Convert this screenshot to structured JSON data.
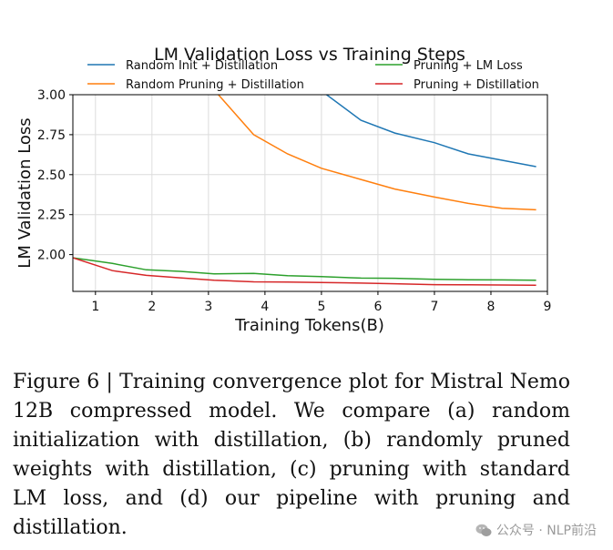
{
  "chart_data": {
    "type": "line",
    "title": "LM Validation Loss vs Training Steps",
    "xlabel": "Training Tokens(B)",
    "ylabel": "LM Validation Loss",
    "xlim": [
      0.6,
      9.0
    ],
    "ylim": [
      1.77,
      3.0
    ],
    "xticks": [
      1,
      2,
      3,
      4,
      5,
      6,
      7,
      8,
      9
    ],
    "yticks": [
      2.0,
      2.25,
      2.5,
      2.75,
      3.0
    ],
    "ytick_labels": [
      "2.00",
      "2.25",
      "2.50",
      "2.75",
      "3.00"
    ],
    "grid": true,
    "legend_position": "top",
    "series": [
      {
        "name": "Random Init + Distillation",
        "color": "#1f77b4",
        "x": [
          4.9,
          5.7,
          6.3,
          7.0,
          7.6,
          8.2,
          8.8
        ],
        "y": [
          3.05,
          2.84,
          2.76,
          2.7,
          2.63,
          2.59,
          2.55
        ]
      },
      {
        "name": "Random Pruning + Distillation",
        "color": "#ff7f0e",
        "x": [
          3.05,
          3.8,
          4.4,
          5.0,
          5.7,
          6.3,
          7.0,
          7.6,
          8.2,
          8.8
        ],
        "y": [
          3.05,
          2.75,
          2.63,
          2.54,
          2.47,
          2.41,
          2.36,
          2.32,
          2.29,
          2.28
        ]
      },
      {
        "name": "Pruning + LM Loss",
        "color": "#2ca02c",
        "x": [
          0.6,
          1.3,
          1.9,
          2.5,
          3.1,
          3.8,
          4.4,
          5.0,
          5.7,
          6.3,
          7.0,
          7.6,
          8.2,
          8.8
        ],
        "y": [
          1.98,
          1.945,
          1.905,
          1.895,
          1.88,
          1.882,
          1.868,
          1.862,
          1.853,
          1.852,
          1.845,
          1.843,
          1.842,
          1.84
        ]
      },
      {
        "name": "Pruning + Distillation",
        "color": "#d62728",
        "x": [
          0.6,
          1.3,
          1.9,
          2.5,
          3.1,
          3.8,
          4.4,
          5.0,
          5.7,
          6.3,
          7.0,
          7.6,
          8.2,
          8.8
        ],
        "y": [
          1.98,
          1.9,
          1.87,
          1.855,
          1.84,
          1.83,
          1.828,
          1.826,
          1.822,
          1.818,
          1.812,
          1.811,
          1.81,
          1.808
        ]
      }
    ]
  },
  "caption": "Figure 6 | Training convergence plot for Mistral Nemo 12B compressed model. We compare (a) random initialization with distillation, (b) randomly pruned weights with distillation, (c) pruning with standard LM loss, and (d) our pipeline with pruning and distillation.",
  "watermark": {
    "text": "公众号 · NLP前沿",
    "icon": "wechat-icon",
    "color": "#9a9a9a"
  }
}
